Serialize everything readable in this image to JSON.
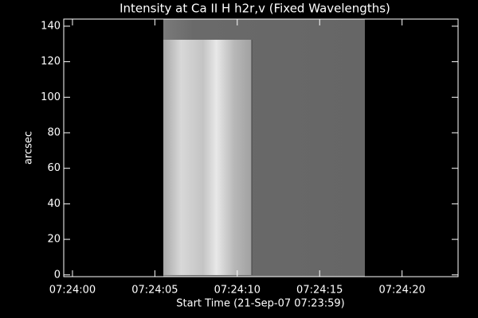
{
  "chart_data": {
    "type": "image",
    "title": "Intensity at Ca II H h2r,v (Fixed Wavelengths)",
    "xlabel": "Start Time (21-Sep-07 07:23:59)",
    "ylabel": "arcsec",
    "xlim": [
      0.47,
      24.4
    ],
    "xticks": [
      {
        "value": 1,
        "label": "07:24:00"
      },
      {
        "value": 6,
        "label": "07:24:05"
      },
      {
        "value": 11,
        "label": "07:24:10"
      },
      {
        "value": 16,
        "label": "07:24:15"
      },
      {
        "value": 21,
        "label": "07:24:20"
      }
    ],
    "ylim": [
      -1,
      144
    ],
    "yticks": [
      0,
      20,
      40,
      60,
      80,
      100,
      120,
      140
    ],
    "color": "#ffffff"
  }
}
